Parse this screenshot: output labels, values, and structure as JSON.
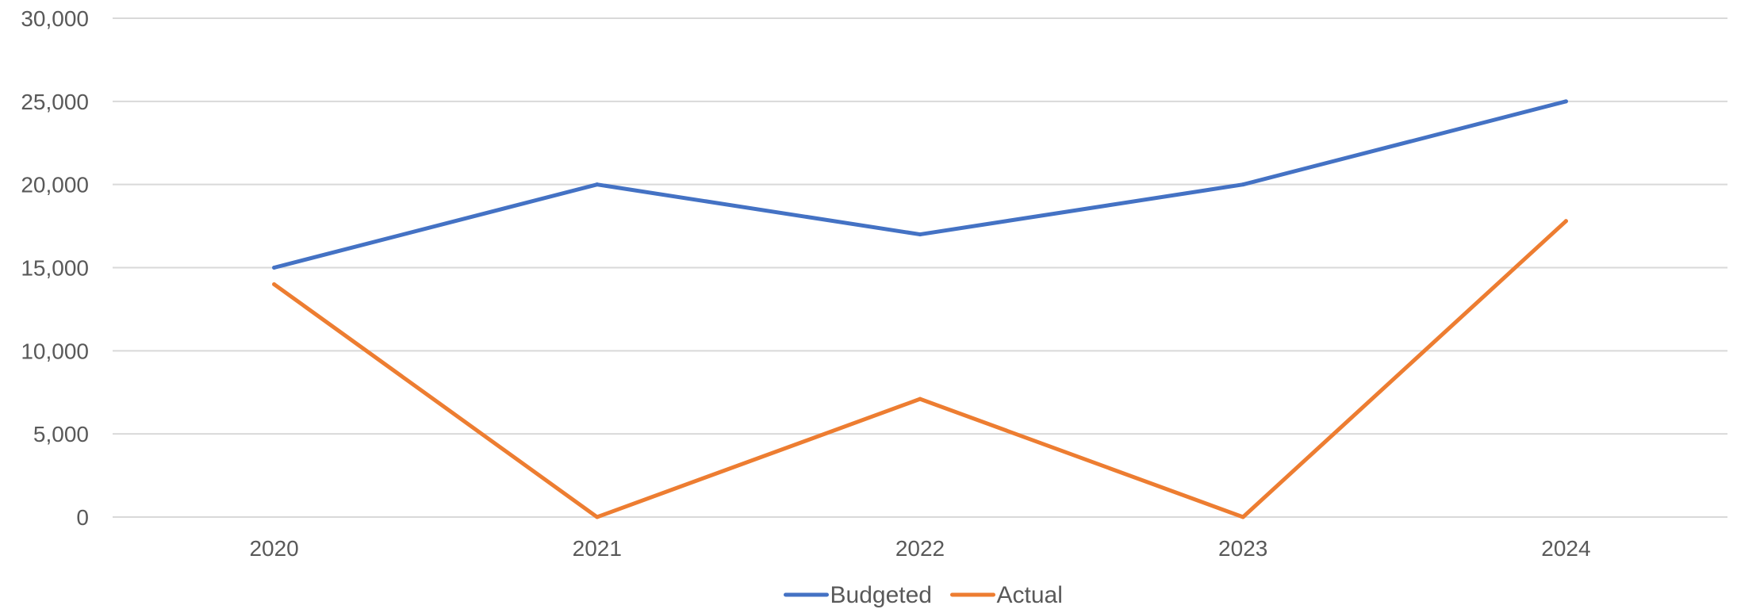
{
  "chart_data": {
    "type": "line",
    "title": "",
    "xlabel": "",
    "ylabel": "",
    "categories": [
      "2020",
      "2021",
      "2022",
      "2023",
      "2024"
    ],
    "series": [
      {
        "name": "Budgeted",
        "color": "#4472C4",
        "values": [
          15000,
          20000,
          17000,
          20000,
          25000
        ]
      },
      {
        "name": "Actual",
        "color": "#ED7D31",
        "values": [
          14000,
          0,
          7100,
          0,
          17800
        ]
      }
    ],
    "ylim": [
      0,
      30000
    ],
    "yticks": [
      0,
      5000,
      10000,
      15000,
      20000,
      25000,
      30000
    ],
    "ytick_labels": [
      "0",
      "5,000",
      "10,000",
      "15,000",
      "20,000",
      "25,000",
      "30,000"
    ],
    "grid": true,
    "legend_position": "bottom"
  }
}
